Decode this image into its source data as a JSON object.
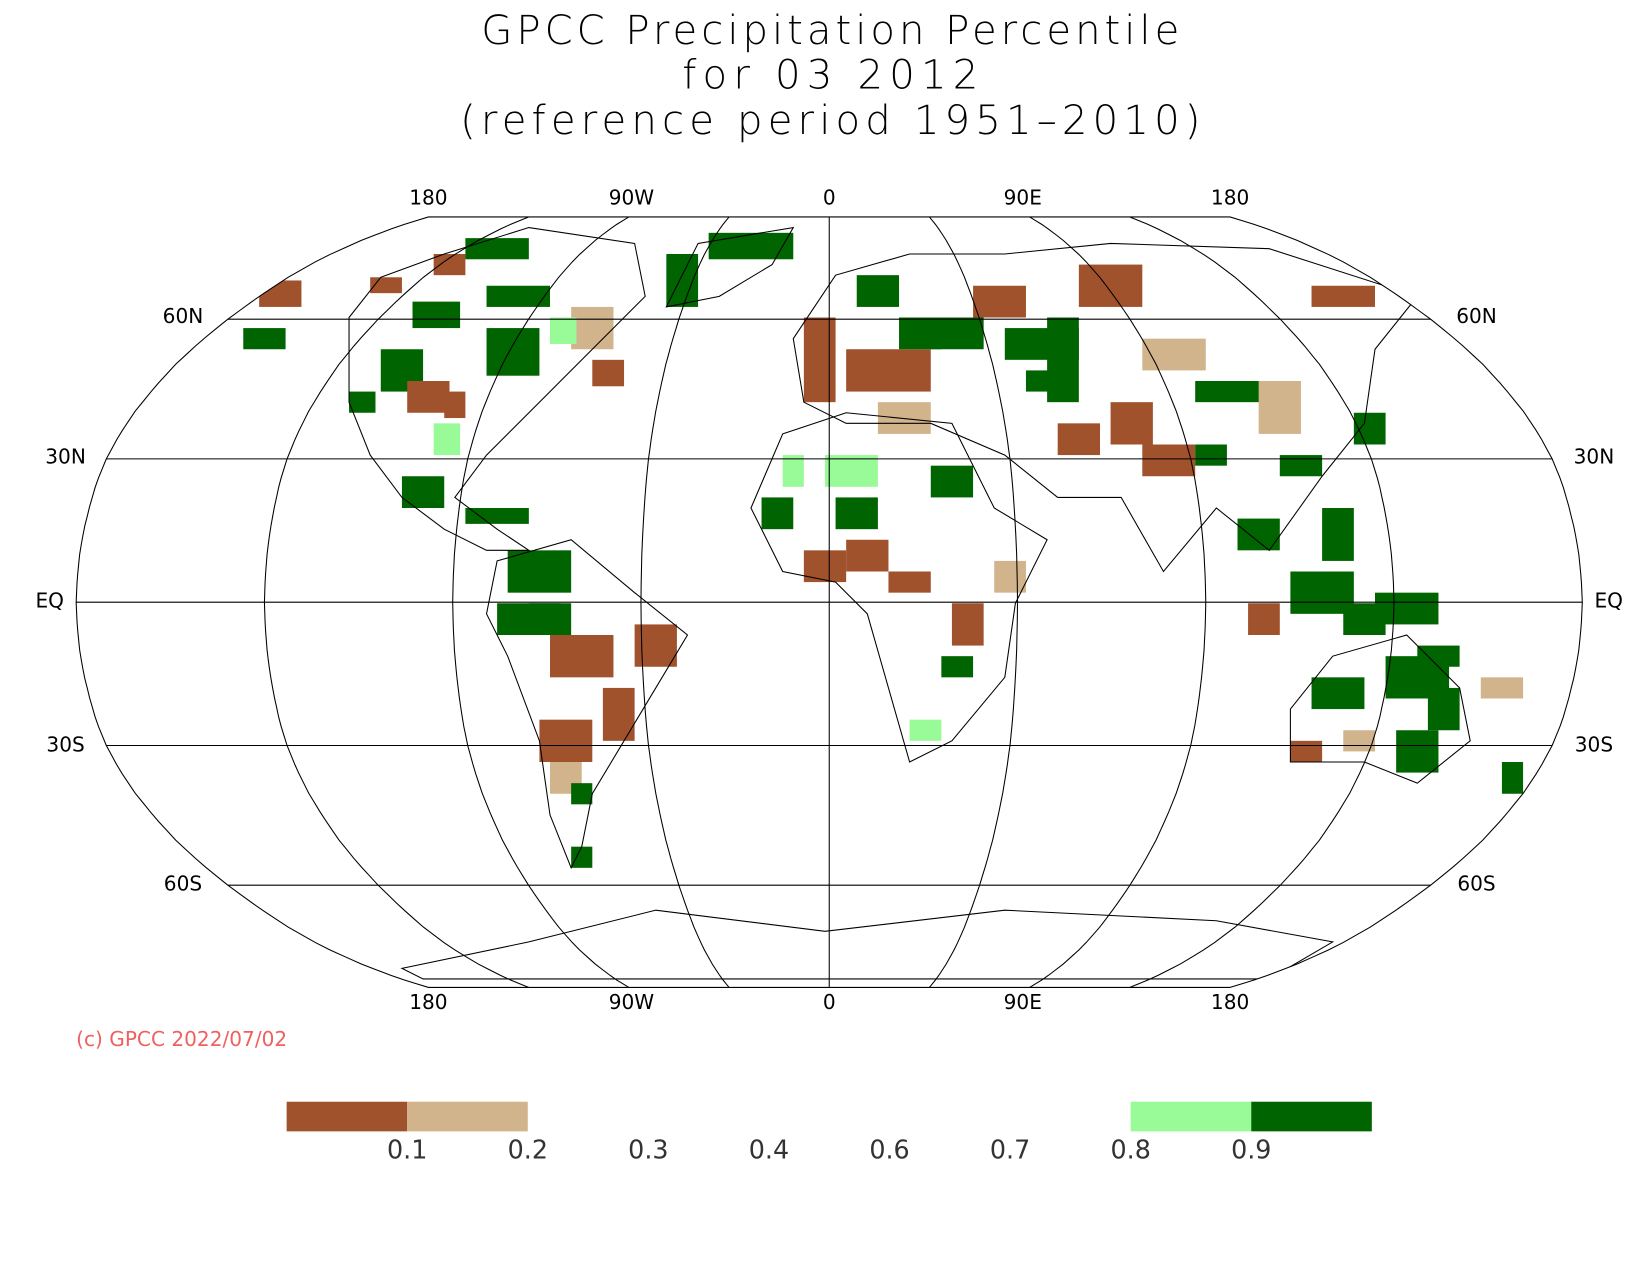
{
  "header": {
    "title_lines": [
      "GPCC Precipitation Percentile",
      "for 03 2012",
      "(reference period 1951–2010)"
    ]
  },
  "map": {
    "lon_labels": [
      "180",
      "90W",
      "0",
      "90E",
      "180"
    ],
    "lat_labels": [
      "60N",
      "30N",
      "EQ",
      "30S",
      "60S"
    ]
  },
  "credit": "(c) GPCC 2022/07/02",
  "legend": {
    "colors": [
      "#a0522d",
      "#d2b48c",
      "#98fb98",
      "#006400"
    ],
    "labels": [
      0.1,
      0.2,
      0.3,
      0.4,
      0.6,
      0.7,
      0.8,
      0.9
    ]
  }
}
